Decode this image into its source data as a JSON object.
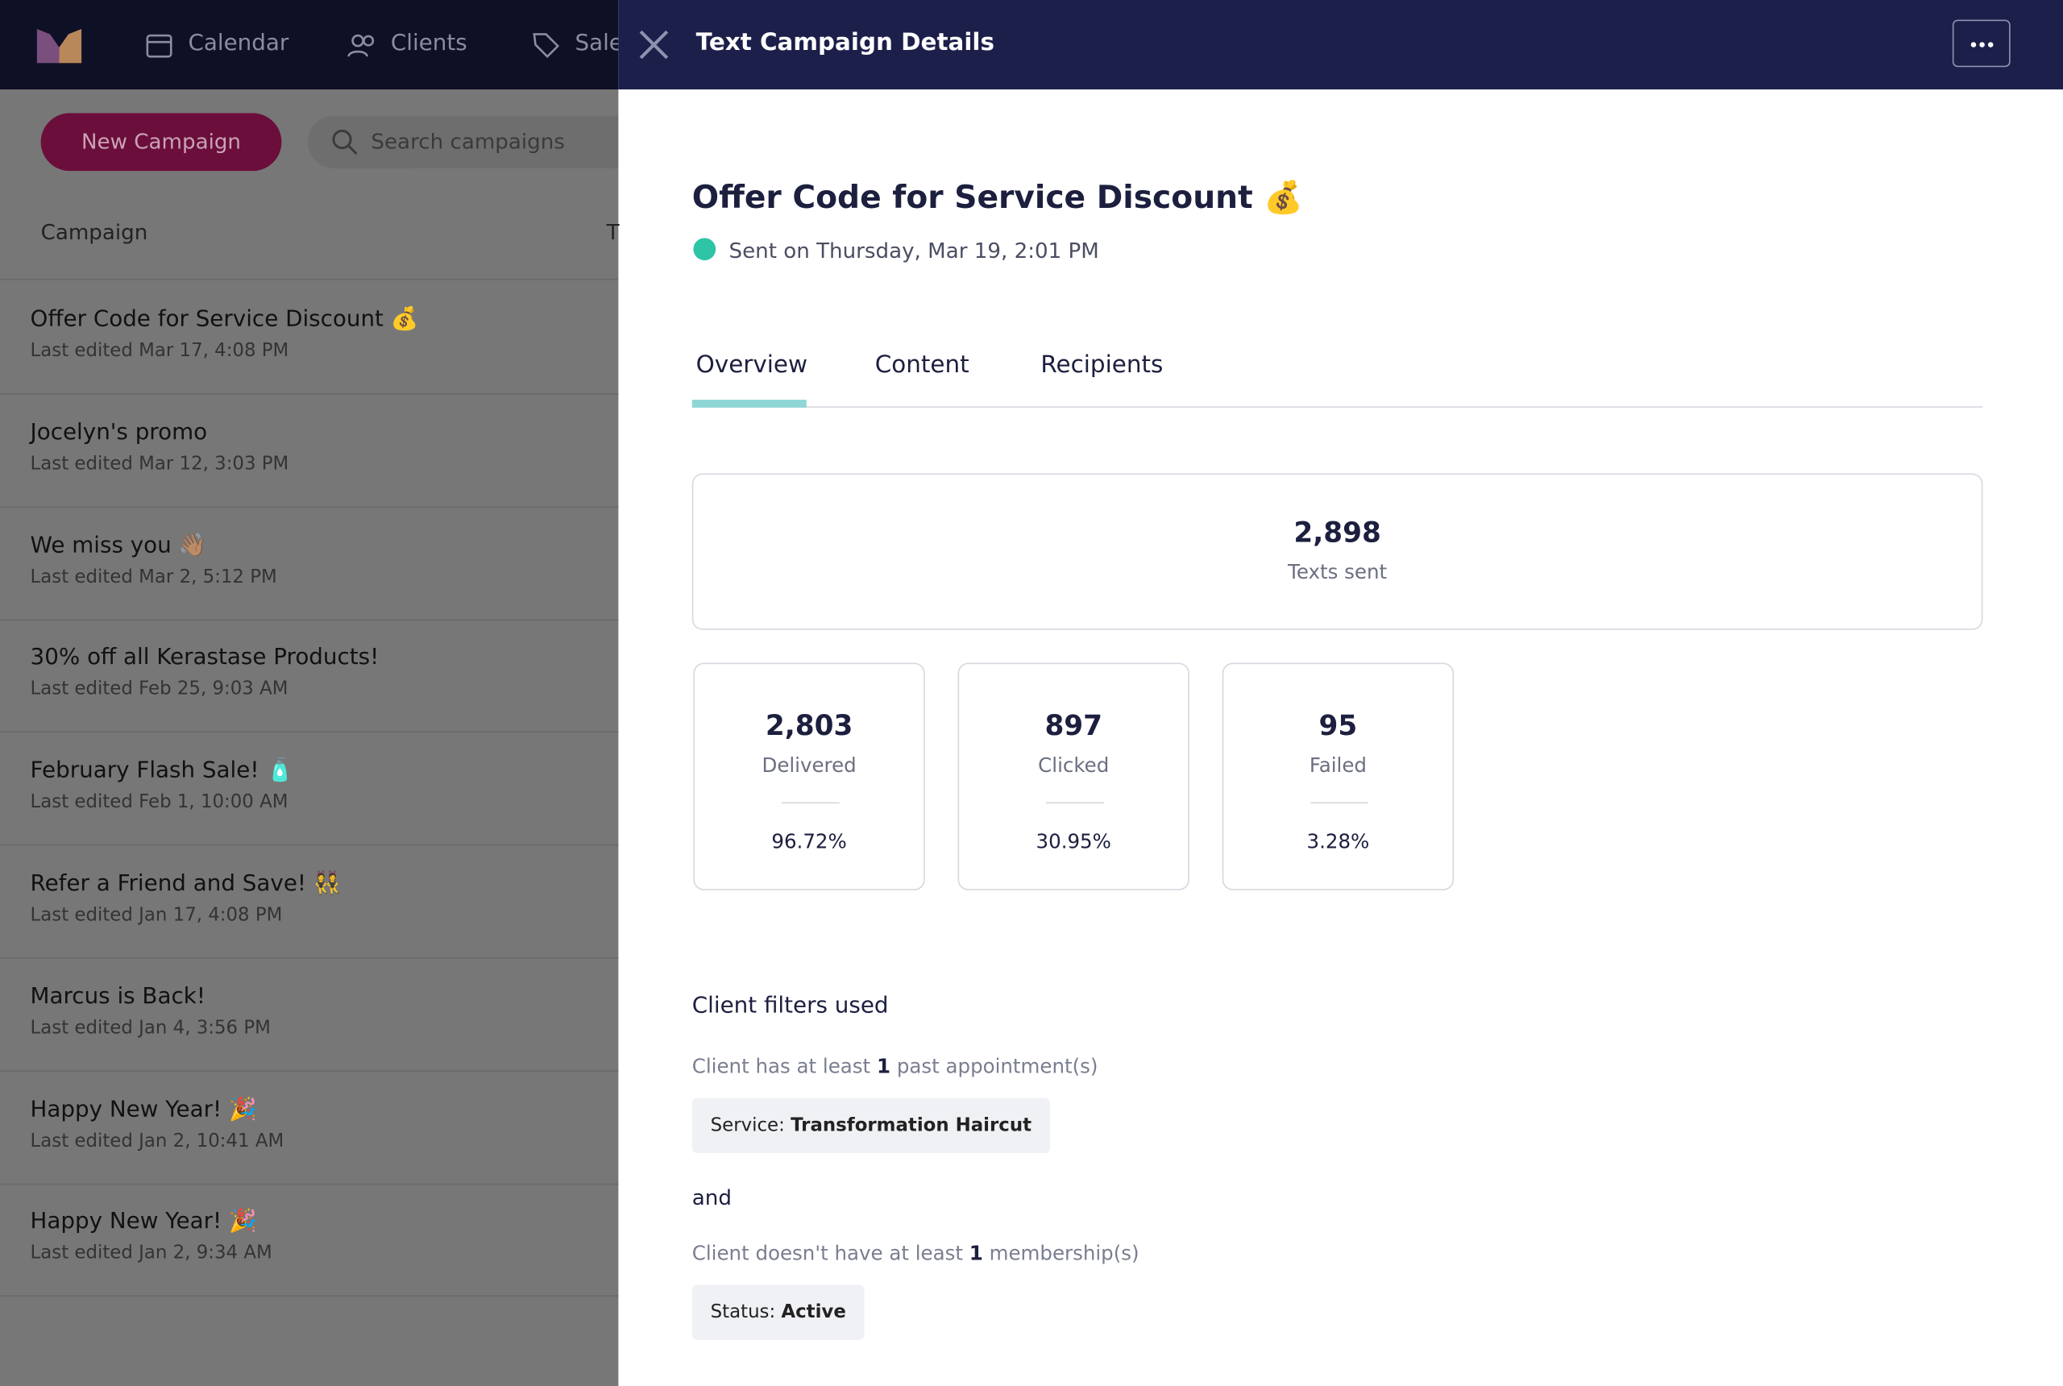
{
  "nav": {
    "items": [
      "Calendar",
      "Clients",
      "Sale"
    ]
  },
  "toolbar": {
    "new_button": "New Campaign",
    "search_placeholder": "Search campaigns"
  },
  "list": {
    "headers": [
      "Campaign",
      "T"
    ],
    "campaigns": [
      {
        "name": "Offer Code for Service Discount 💰",
        "edited": "Last edited Mar 17, 4:08 PM"
      },
      {
        "name": "Jocelyn's promo",
        "edited": "Last edited Mar 12, 3:03 PM"
      },
      {
        "name": "We miss you 👋🏽",
        "edited": "Last edited Mar 2, 5:12 PM"
      },
      {
        "name": "30% off all Kerastase Products!",
        "edited": "Last edited Feb 25, 9:03 AM"
      },
      {
        "name": "February Flash Sale! 🧴",
        "edited": "Last edited Feb 1, 10:00 AM"
      },
      {
        "name": "Refer a Friend and Save! 👯",
        "edited": "Last edited Jan 17, 4:08 PM"
      },
      {
        "name": "Marcus is Back!",
        "edited": "Last edited Jan 4, 3:56 PM"
      },
      {
        "name": "Happy New Year! 🎉",
        "edited": "Last edited Jan 2, 10:41 AM"
      },
      {
        "name": "Happy New Year! 🎉",
        "edited": "Last edited Jan 2, 9:34 AM"
      }
    ]
  },
  "panel": {
    "header_title": "Text Campaign Details",
    "title": "Offer Code for Service Discount 💰",
    "status": "Sent on Thursday, Mar 19, 2:01 PM",
    "tabs": [
      "Overview",
      "Content",
      "Recipients"
    ],
    "total": {
      "value": "2,898",
      "label": "Texts sent"
    },
    "stats": [
      {
        "value": "2,803",
        "label": "Delivered",
        "percent": "96.72%"
      },
      {
        "value": "897",
        "label": "Clicked",
        "percent": "30.95%"
      },
      {
        "value": "95",
        "label": "Failed",
        "percent": "3.28%"
      }
    ],
    "filters_title": "Client filters used",
    "filters": [
      {
        "prefix": "Client has at least",
        "count": "1",
        "suffix": "past appointment(s)",
        "chip_key": "Service:",
        "chip_value": "Transformation Haircut"
      },
      {
        "prefix": "Client doesn't have at least",
        "count": "1",
        "suffix": "membership(s)",
        "chip_key": "Status:",
        "chip_value": "Active"
      }
    ],
    "connector": "and"
  }
}
